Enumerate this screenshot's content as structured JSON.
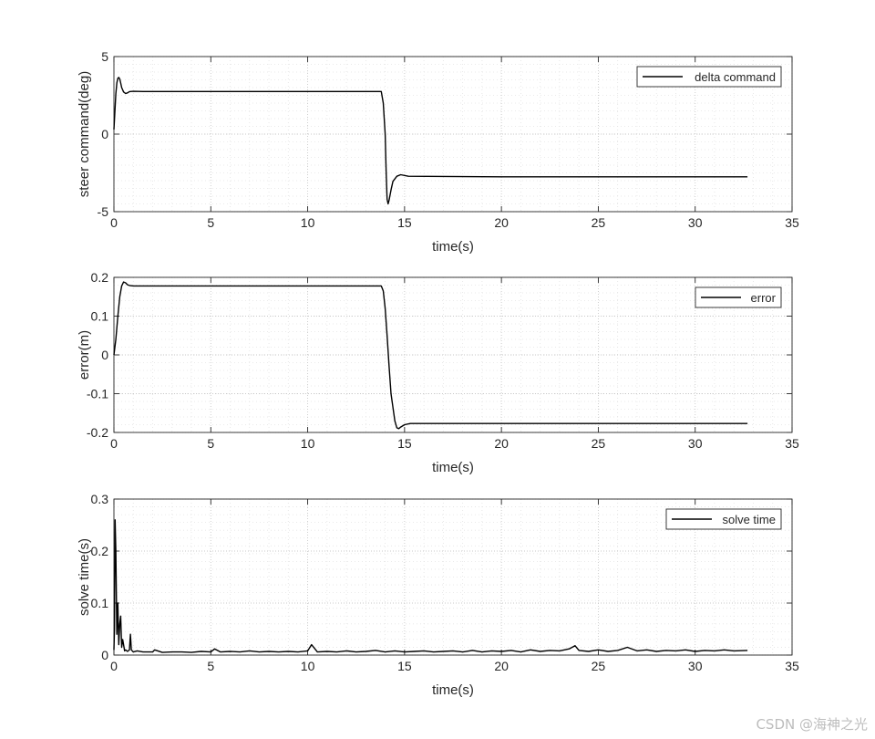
{
  "watermark": "CSDN @海神之光",
  "chart_data": [
    {
      "type": "line",
      "xlabel": "time(s)",
      "ylabel": "steer command(deg)",
      "xlim": [
        0,
        35
      ],
      "ylim": [
        -5,
        5
      ],
      "xticks": [
        "0",
        "5",
        "10",
        "15",
        "20",
        "25",
        "30",
        "35"
      ],
      "yticks": [
        "-5",
        "0",
        "5"
      ],
      "grid": true,
      "minor_grid": true,
      "legend": "top-right",
      "series": [
        {
          "name": "delta command",
          "x": [
            0,
            0.05,
            0.1,
            0.15,
            0.2,
            0.25,
            0.3,
            0.35,
            0.4,
            0.5,
            0.6,
            0.7,
            0.8,
            1.0,
            1.5,
            5,
            10,
            13.8,
            13.9,
            14.0,
            14.05,
            14.1,
            14.15,
            14.2,
            14.3,
            14.4,
            14.6,
            14.8,
            15.2,
            20,
            25,
            30,
            32.7
          ],
          "y": [
            0.3,
            1.5,
            2.6,
            3.3,
            3.6,
            3.65,
            3.55,
            3.3,
            3.0,
            2.72,
            2.62,
            2.66,
            2.74,
            2.76,
            2.75,
            2.75,
            2.75,
            2.75,
            2.0,
            0.0,
            -2.5,
            -4.2,
            -4.5,
            -4.25,
            -3.6,
            -3.05,
            -2.72,
            -2.62,
            -2.72,
            -2.75,
            -2.75,
            -2.75,
            -2.75
          ]
        }
      ]
    },
    {
      "type": "line",
      "xlabel": "time(s)",
      "ylabel": "error(m)",
      "xlim": [
        0,
        35
      ],
      "ylim": [
        -0.2,
        0.2
      ],
      "xticks": [
        "0",
        "5",
        "10",
        "15",
        "20",
        "25",
        "30",
        "35"
      ],
      "yticks": [
        "-0.2",
        "-0.1",
        "0",
        "0.1",
        "0.2"
      ],
      "grid": true,
      "minor_grid": true,
      "legend": "top-right",
      "series": [
        {
          "name": "error",
          "x": [
            0,
            0.1,
            0.2,
            0.3,
            0.4,
            0.5,
            0.6,
            0.7,
            0.8,
            1.0,
            1.5,
            5,
            10,
            13.8,
            13.9,
            14.0,
            14.1,
            14.2,
            14.3,
            14.5,
            14.6,
            14.7,
            14.8,
            15.0,
            15.3,
            20,
            25,
            30,
            32.7
          ],
          "y": [
            0.0,
            0.04,
            0.1,
            0.15,
            0.178,
            0.188,
            0.186,
            0.181,
            0.179,
            0.178,
            0.178,
            0.178,
            0.178,
            0.178,
            0.165,
            0.12,
            0.05,
            -0.03,
            -0.1,
            -0.17,
            -0.188,
            -0.19,
            -0.186,
            -0.18,
            -0.177,
            -0.177,
            -0.177,
            -0.177,
            -0.177
          ]
        }
      ]
    },
    {
      "type": "line",
      "xlabel": "time(s)",
      "ylabel": "solve time(s)",
      "xlim": [
        0,
        35
      ],
      "ylim": [
        0,
        0.3
      ],
      "xticks": [
        "0",
        "5",
        "10",
        "15",
        "20",
        "25",
        "30",
        "35"
      ],
      "yticks": [
        "0",
        "0.1",
        "0.2",
        "0.3"
      ],
      "grid": true,
      "minor_grid": true,
      "legend": "top-right",
      "series": [
        {
          "name": "solve time",
          "x": [
            0,
            0.03,
            0.06,
            0.1,
            0.15,
            0.2,
            0.25,
            0.3,
            0.35,
            0.4,
            0.45,
            0.5,
            0.55,
            0.6,
            0.7,
            0.8,
            0.85,
            0.9,
            1.0,
            1.2,
            1.5,
            2.0,
            2.1,
            2.5,
            3.0,
            3.5,
            4.0,
            4.5,
            5.0,
            5.2,
            5.5,
            6.0,
            6.5,
            7.0,
            7.5,
            8.0,
            8.5,
            9.0,
            9.5,
            10.0,
            10.2,
            10.5,
            11.0,
            11.5,
            12.0,
            12.5,
            13.0,
            13.5,
            14.0,
            14.5,
            15.0,
            15.5,
            16.0,
            16.5,
            17.0,
            17.5,
            18.0,
            18.5,
            19.0,
            19.5,
            20.0,
            20.5,
            21.0,
            21.5,
            22.0,
            22.5,
            23.0,
            23.5,
            23.8,
            24.0,
            24.5,
            25.0,
            25.5,
            26.0,
            26.5,
            27.0,
            27.5,
            28.0,
            28.5,
            29.0,
            29.5,
            30.0,
            30.5,
            31.0,
            31.5,
            32.0,
            32.7
          ],
          "y": [
            0.01,
            0.05,
            0.26,
            0.2,
            0.04,
            0.1,
            0.02,
            0.06,
            0.075,
            0.015,
            0.03,
            0.02,
            0.008,
            0.01,
            0.007,
            0.01,
            0.04,
            0.01,
            0.006,
            0.008,
            0.006,
            0.006,
            0.01,
            0.005,
            0.006,
            0.006,
            0.005,
            0.007,
            0.006,
            0.012,
            0.006,
            0.007,
            0.006,
            0.008,
            0.006,
            0.007,
            0.006,
            0.007,
            0.006,
            0.008,
            0.02,
            0.006,
            0.007,
            0.006,
            0.008,
            0.006,
            0.007,
            0.009,
            0.006,
            0.008,
            0.006,
            0.007,
            0.008,
            0.006,
            0.007,
            0.008,
            0.006,
            0.009,
            0.006,
            0.008,
            0.007,
            0.009,
            0.006,
            0.01,
            0.007,
            0.009,
            0.008,
            0.012,
            0.018,
            0.009,
            0.007,
            0.01,
            0.007,
            0.009,
            0.015,
            0.008,
            0.01,
            0.007,
            0.009,
            0.008,
            0.01,
            0.007,
            0.009,
            0.008,
            0.01,
            0.008,
            0.009
          ]
        }
      ]
    }
  ]
}
